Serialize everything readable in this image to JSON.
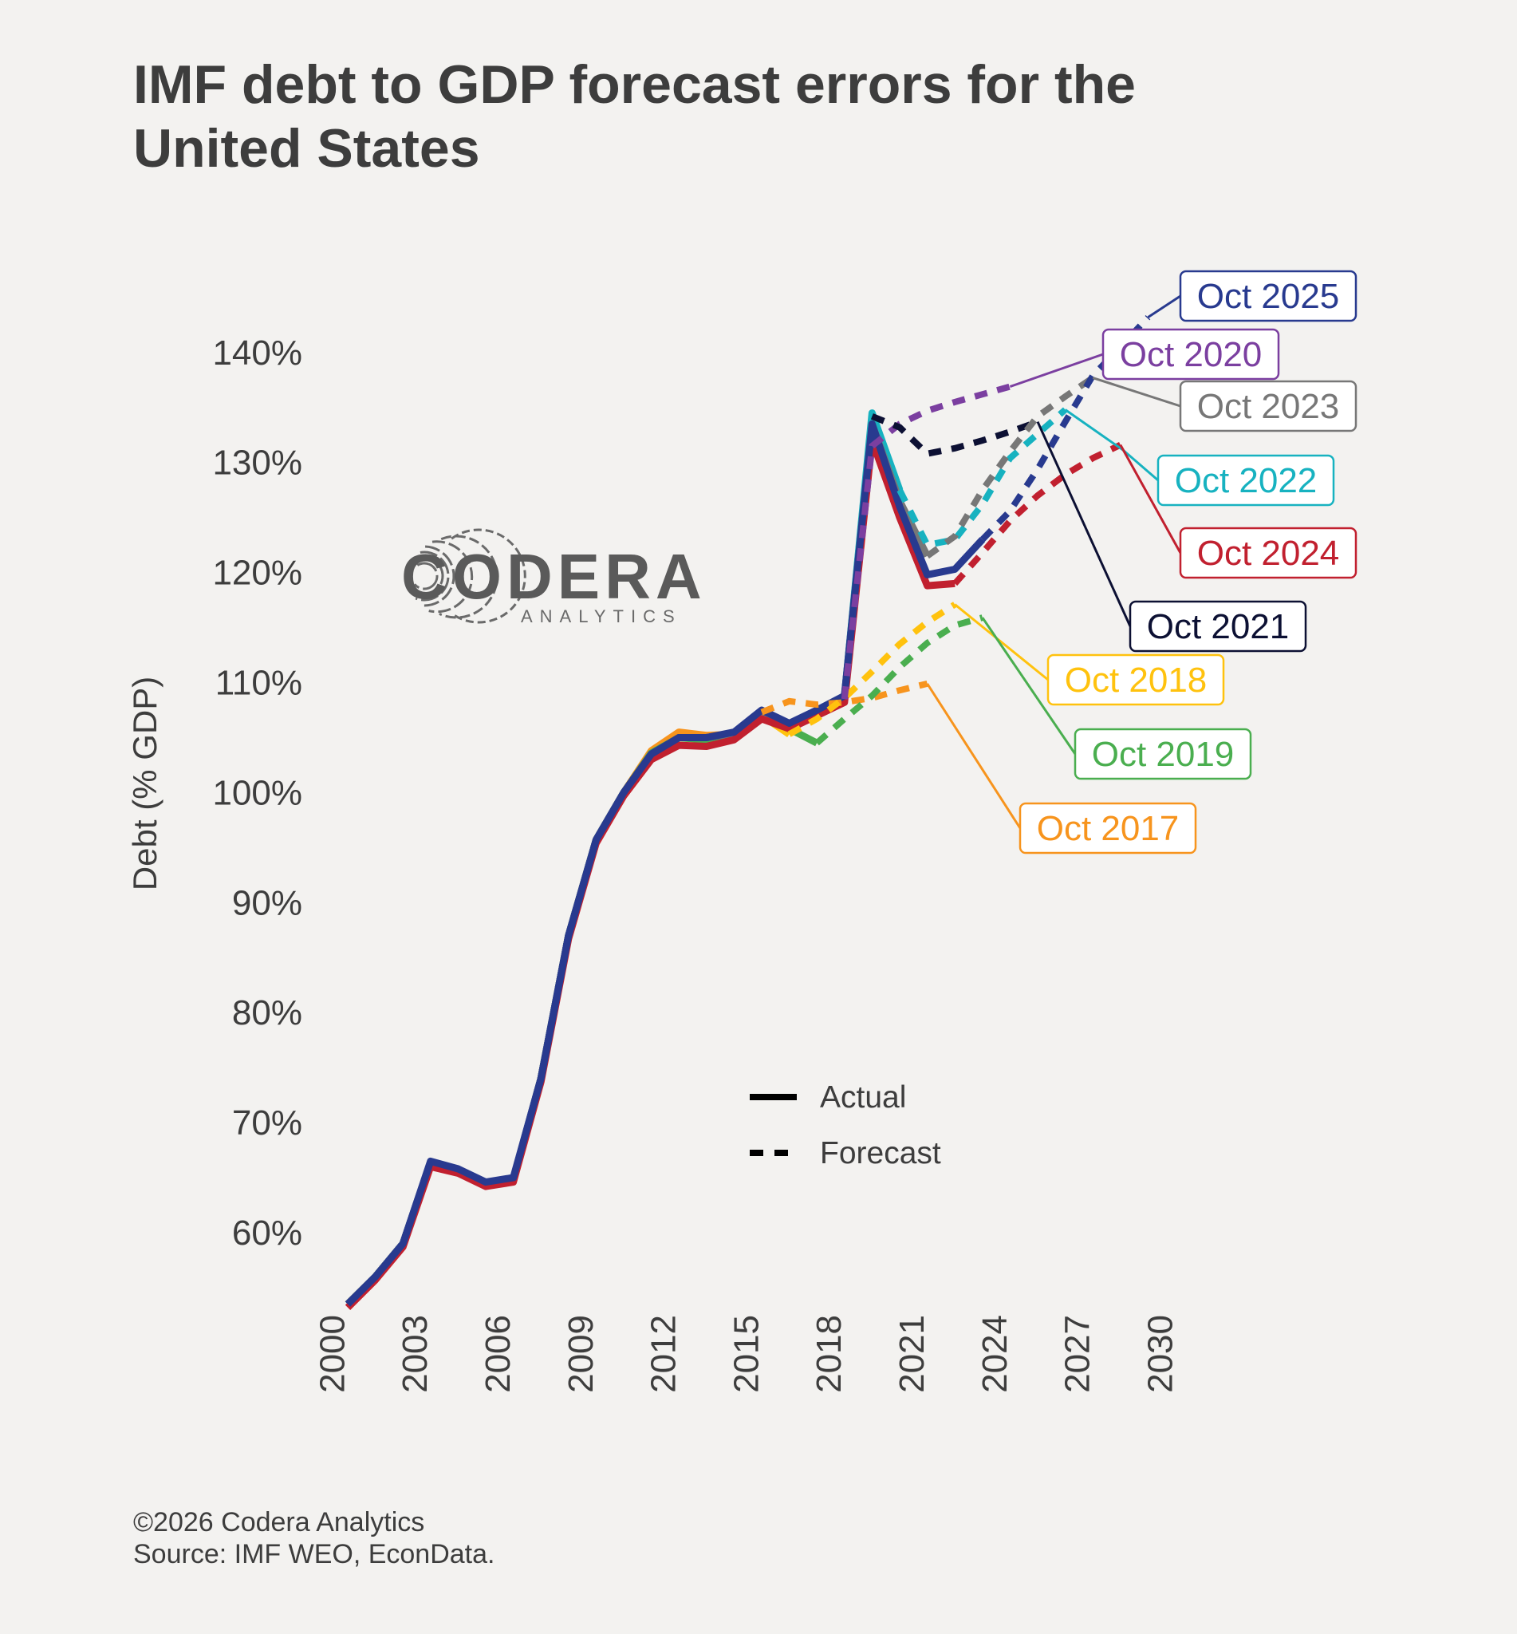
{
  "chart_data": {
    "type": "line",
    "title": "IMF debt to GDP forecast errors for the United States",
    "ylabel": "Debt (% GDP)",
    "xlabel": "",
    "ylim": [
      55,
      145
    ],
    "xlim": [
      2000,
      2030
    ],
    "yticks": [
      60,
      70,
      80,
      90,
      100,
      110,
      120,
      130,
      140
    ],
    "ytick_labels": [
      "60%",
      "70%",
      "80%",
      "90%",
      "100%",
      "110%",
      "120%",
      "130%",
      "140%"
    ],
    "xticks": [
      2000,
      2003,
      2006,
      2009,
      2012,
      2015,
      2018,
      2021,
      2024,
      2027,
      2030
    ],
    "xtick_labels": [
      "2000",
      "2003",
      "2006",
      "2009",
      "2012",
      "2015",
      "2018",
      "2021",
      "2024",
      "2027",
      "2030"
    ],
    "grid": false,
    "legend": {
      "placement": "center",
      "entries": [
        {
          "label": "Actual",
          "style": "solid"
        },
        {
          "label": "Forecast",
          "style": "dashed"
        }
      ]
    },
    "series": [
      {
        "name": "Oct 2017",
        "color": "#f7941d",
        "actual": {
          "start": 2001,
          "values": [
            53.5,
            56,
            59,
            66.3,
            65.6,
            64.4,
            64.8,
            74,
            87,
            95.7,
            100,
            103.8,
            105.5,
            105.2,
            105.3,
            107.3
          ]
        },
        "forecast": {
          "start": 2017,
          "values": [
            108.3,
            108,
            108.2,
            108.6,
            109.3,
            109.9
          ]
        }
      },
      {
        "name": "Oct 2018",
        "color": "#ffc20e",
        "actual": {
          "start": 2001,
          "values": [
            53.5,
            56,
            59,
            66.3,
            65.6,
            64.4,
            64.8,
            74,
            87,
            95.7,
            100,
            103.6,
            105,
            104.8,
            105.2,
            107,
            105.3
          ]
        },
        "forecast": {
          "start": 2018,
          "values": [
            106.7,
            108.6,
            111,
            113.5,
            115.5,
            117.1
          ]
        }
      },
      {
        "name": "Oct 2019",
        "color": "#4aae4f",
        "actual": {
          "start": 2001,
          "values": [
            53.5,
            56,
            59,
            66.3,
            65.6,
            64.4,
            64.8,
            74,
            87,
            95.7,
            100,
            103.6,
            105,
            104.8,
            105.2,
            107,
            105.8,
            104.5
          ]
        },
        "forecast": {
          "start": 2019,
          "values": [
            106.7,
            108.8,
            111.4,
            113.6,
            115.2,
            115.9
          ]
        }
      },
      {
        "name": "Oct 2020",
        "color": "#7b3fa0",
        "actual": {
          "start": 2001,
          "values": [
            53.5,
            56,
            59,
            66.4,
            65.7,
            64.5,
            64.9,
            74,
            87,
            95.7,
            100,
            103.5,
            105,
            105,
            105.4,
            107.2,
            106,
            107,
            108.5
          ]
        },
        "forecast": {
          "start": 2020,
          "values": [
            131.5,
            133.5,
            134.7,
            135.5,
            136.2,
            136.9
          ]
        }
      },
      {
        "name": "Oct 2021",
        "color": "#0c1033",
        "actual": {
          "start": 2001,
          "values": [
            53.5,
            56,
            59,
            66.4,
            65.7,
            64.5,
            64.9,
            74,
            87,
            95.7,
            100,
            103.5,
            105,
            105,
            105.4,
            107.2,
            106,
            107.2,
            108.6,
            134.2
          ]
        },
        "forecast": {
          "start": 2021,
          "values": [
            133.2,
            130.8,
            131.3,
            132,
            132.8,
            133.7
          ]
        }
      },
      {
        "name": "Oct 2022",
        "color": "#17b2c0",
        "actual": {
          "start": 2001,
          "values": [
            53.5,
            56,
            59,
            66.4,
            65.7,
            64.5,
            64.9,
            74,
            87,
            95.7,
            100,
            103.5,
            105,
            105,
            105.4,
            107.2,
            106.1,
            107.3,
            108.7,
            134.5,
            127.5
          ]
        },
        "forecast": {
          "start": 2022,
          "values": [
            122.5,
            123,
            126.2,
            130.4,
            132.6,
            134.8
          ]
        }
      },
      {
        "name": "Oct 2023",
        "color": "#777777",
        "actual": {
          "start": 2001,
          "values": [
            53.5,
            56,
            59,
            66.4,
            65.7,
            64.5,
            64.9,
            74,
            87,
            95.7,
            100,
            103.5,
            105,
            105,
            105.4,
            107.3,
            106.2,
            107.4,
            108.7,
            133.5,
            126.5,
            121.5
          ]
        },
        "forecast": {
          "start": 2023,
          "values": [
            123.3,
            127.5,
            131,
            134.2,
            136,
            137.7
          ]
        }
      },
      {
        "name": "Oct 2024",
        "color": "#c1202f",
        "actual": {
          "start": 2001,
          "values": [
            53.2,
            55.7,
            58.7,
            66,
            65.4,
            64.2,
            64.6,
            73.7,
            86.7,
            95.4,
            99.7,
            103,
            104.3,
            104.2,
            104.8,
            106.7,
            105.8,
            107,
            108.2,
            132,
            125,
            118.8,
            119
          ]
        },
        "forecast": {
          "start": 2024,
          "values": [
            121.8,
            124.7,
            127,
            128.9,
            130.4,
            131.6
          ]
        }
      },
      {
        "name": "Oct 2025",
        "color": "#283a8f",
        "actual": {
          "start": 2001,
          "values": [
            53.5,
            56,
            59,
            66.5,
            65.8,
            64.6,
            65,
            74,
            87,
            95.7,
            100,
            103.5,
            105,
            105,
            105.5,
            107.5,
            106.3,
            107.5,
            108.8,
            133.5,
            126,
            119.8,
            120.3,
            123
          ]
        },
        "forecast": {
          "start": 2025,
          "values": [
            125.6,
            129.4,
            133.7,
            137.9,
            140.5,
            143.2
          ]
        }
      }
    ]
  },
  "logo": {
    "name": "CODERA",
    "subtitle": "ANALYTICS",
    "color": "#5a5a5a"
  },
  "footer": {
    "copyright": "©2026 Codera Analytics",
    "source": "Source: IMF WEO, EconData."
  }
}
